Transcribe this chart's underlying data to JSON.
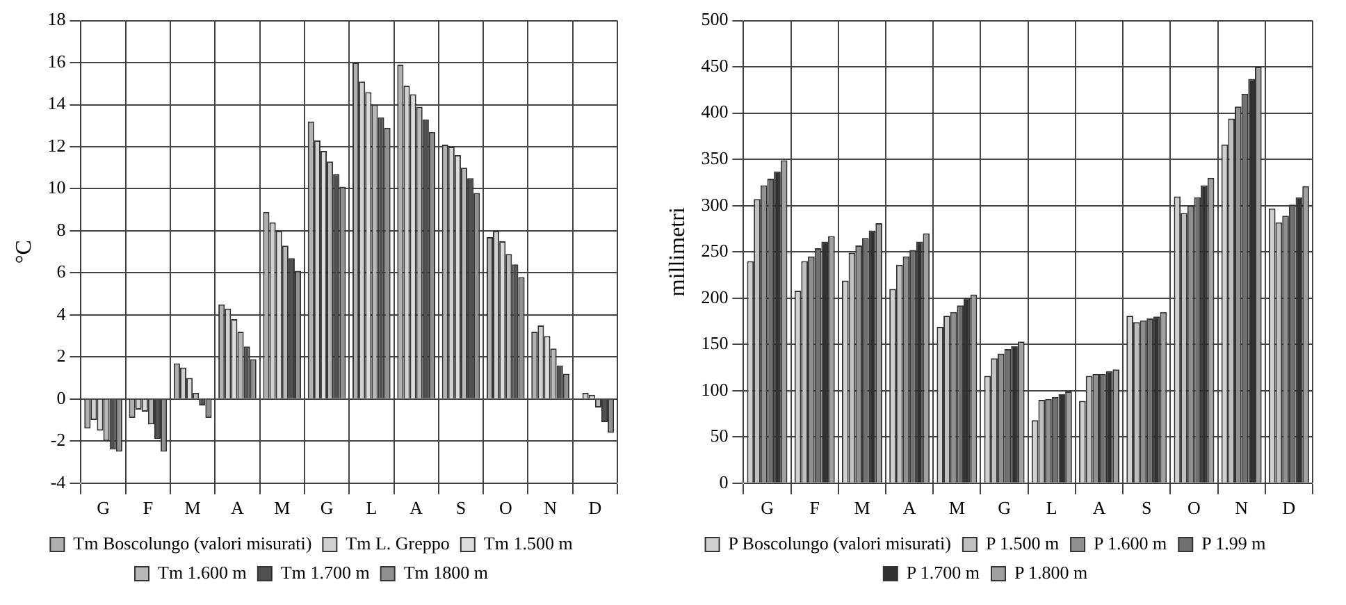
{
  "chart_data": [
    {
      "type": "bar",
      "ylabel": "°C",
      "categories": [
        "G",
        "F",
        "M",
        "A",
        "M",
        "G",
        "L",
        "A",
        "S",
        "O",
        "N",
        "D"
      ],
      "ylim": [
        -4,
        18
      ],
      "yticks": [
        -4,
        -2,
        0,
        2,
        4,
        6,
        8,
        10,
        12,
        14,
        16,
        18
      ],
      "grid": true,
      "legend": "bottom",
      "series": [
        {
          "name": "Tm Boscolungo (valori misurati)",
          "color": "#b0b0b0",
          "values": [
            -1.4,
            -0.9,
            1.7,
            4.5,
            8.9,
            13.2,
            16.0,
            15.9,
            12.1,
            7.7,
            3.2,
            0
          ]
        },
        {
          "name": "Tm L. Greppo",
          "color": "#d0d0d0",
          "values": [
            -1.0,
            -0.5,
            1.5,
            4.3,
            8.4,
            12.3,
            15.1,
            14.9,
            12.0,
            8.0,
            3.5,
            0.3
          ]
        },
        {
          "name": "Tm 1.500 m",
          "color": "#dcdcdc",
          "values": [
            -1.5,
            -0.6,
            1.0,
            3.8,
            8.0,
            11.8,
            14.6,
            14.5,
            11.6,
            7.5,
            3.0,
            0.2
          ]
        },
        {
          "name": "Tm 1.600 m",
          "color": "#b8b8b8",
          "values": [
            -2.0,
            -1.2,
            0.3,
            3.2,
            7.3,
            11.3,
            14.0,
            13.9,
            11.0,
            6.9,
            2.4,
            -0.4
          ]
        },
        {
          "name": "Tm 1.700 m",
          "color": "#505050",
          "values": [
            -2.4,
            -1.9,
            -0.3,
            2.5,
            6.7,
            10.7,
            13.4,
            13.3,
            10.5,
            6.4,
            1.6,
            -1.1
          ]
        },
        {
          "name": "Tm 1800 m",
          "color": "#909090",
          "values": [
            -2.5,
            -2.5,
            -0.9,
            1.9,
            6.1,
            10.1,
            12.9,
            12.7,
            9.8,
            5.8,
            1.2,
            -1.6
          ]
        }
      ]
    },
    {
      "type": "bar",
      "ylabel": "millimetri",
      "categories": [
        "G",
        "F",
        "M",
        "A",
        "M",
        "G",
        "L",
        "A",
        "S",
        "O",
        "N",
        "D"
      ],
      "ylim": [
        0,
        500
      ],
      "yticks": [
        0,
        50,
        100,
        150,
        200,
        250,
        300,
        350,
        400,
        450,
        500
      ],
      "grid": true,
      "legend": "bottom",
      "series": [
        {
          "name": "P Boscolungo (valori misurati)",
          "color": "#d0d0d0",
          "values": [
            240,
            208,
            219,
            210,
            169,
            116,
            68,
            89,
            181,
            310,
            366,
            297
          ]
        },
        {
          "name": "P 1.500 m",
          "color": "#c0c0c0",
          "values": [
            307,
            240,
            249,
            236,
            181,
            135,
            90,
            116,
            174,
            292,
            394,
            282
          ]
        },
        {
          "name": "P 1.600 m",
          "color": "#909090",
          "values": [
            322,
            245,
            257,
            245,
            185,
            140,
            91,
            118,
            176,
            300,
            407,
            289
          ]
        },
        {
          "name": "P 1.99 m",
          "color": "#707070",
          "values": [
            329,
            254,
            265,
            252,
            192,
            145,
            93,
            118,
            178,
            309,
            421,
            301
          ]
        },
        {
          "name": "P 1.700 m",
          "color": "#303030",
          "values": [
            337,
            261,
            273,
            261,
            200,
            148,
            96,
            121,
            180,
            322,
            437,
            309
          ]
        },
        {
          "name": "P 1.800 m",
          "color": "#a0a0a0",
          "values": [
            349,
            267,
            281,
            270,
            204,
            153,
            99,
            123,
            185,
            330,
            450,
            321
          ]
        }
      ]
    }
  ]
}
